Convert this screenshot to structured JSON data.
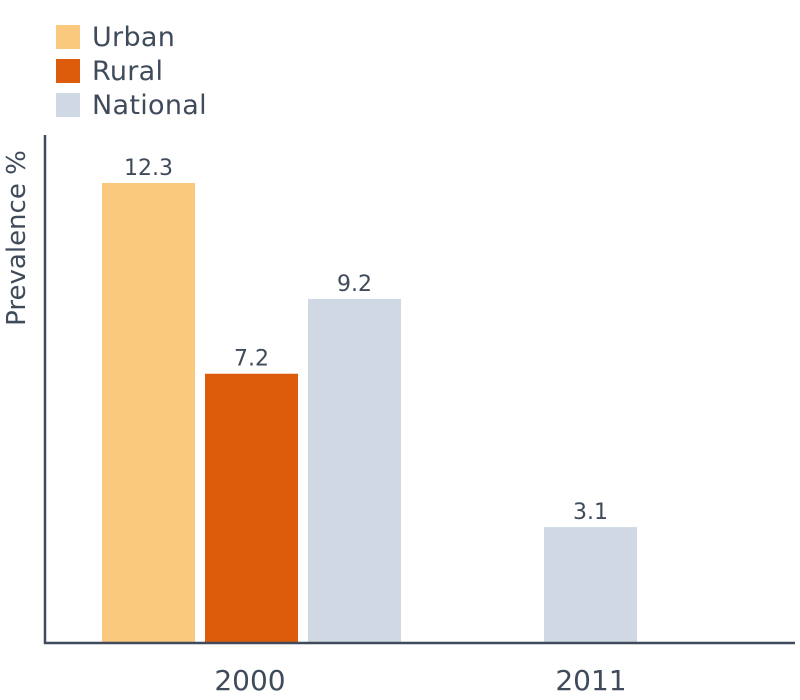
{
  "chart_data": {
    "type": "bar",
    "title": "",
    "xlabel": "",
    "ylabel": "Prevalence %",
    "categories": [
      "2000",
      "2011"
    ],
    "series": [
      {
        "name": "Urban",
        "color": "#fbc97e",
        "values": [
          12.3,
          null
        ]
      },
      {
        "name": "Rural",
        "color": "#dd5c0c",
        "values": [
          7.2,
          null
        ]
      },
      {
        "name": "National",
        "color": "#d0d9e3",
        "values": [
          9.2,
          3.1
        ]
      }
    ],
    "ylim": [
      0,
      13.1
    ],
    "grid": false,
    "legend_position": "top-left",
    "data_labels": true
  }
}
